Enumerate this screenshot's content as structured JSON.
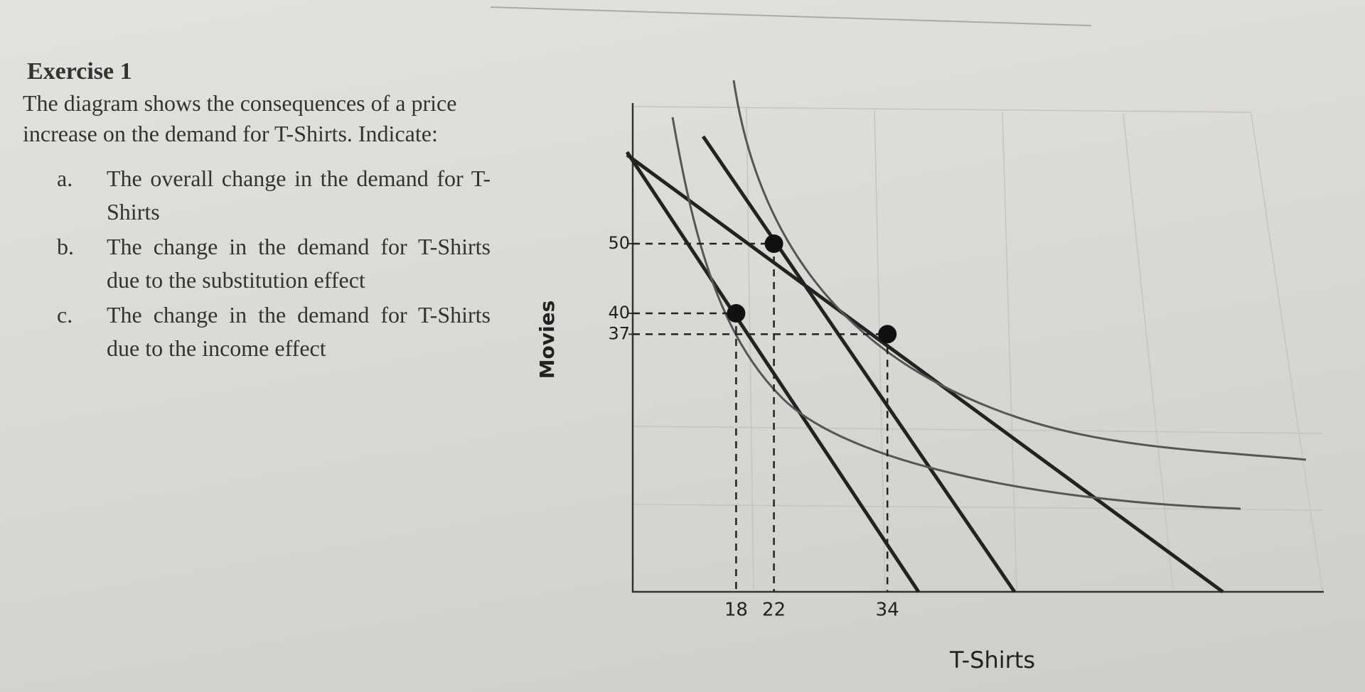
{
  "exercise": {
    "title": "Exercise 1",
    "intro": "The diagram shows the consequences of a price increase on the demand for T-Shirts. Indicate:",
    "items": [
      {
        "marker": "a.",
        "text": "The overall change in the demand for T-Shirts"
      },
      {
        "marker": "b.",
        "text": "The change in the demand for T-Shirts due to the substitution effect"
      },
      {
        "marker": "c.",
        "text": "The change in the demand for T-Shirts due to the income effect"
      }
    ]
  },
  "diagram": {
    "y_label": "Movies",
    "x_label": "T-Shirts",
    "yticks": [
      50,
      40,
      37
    ],
    "xticks": [
      18,
      22,
      34
    ]
  }
}
